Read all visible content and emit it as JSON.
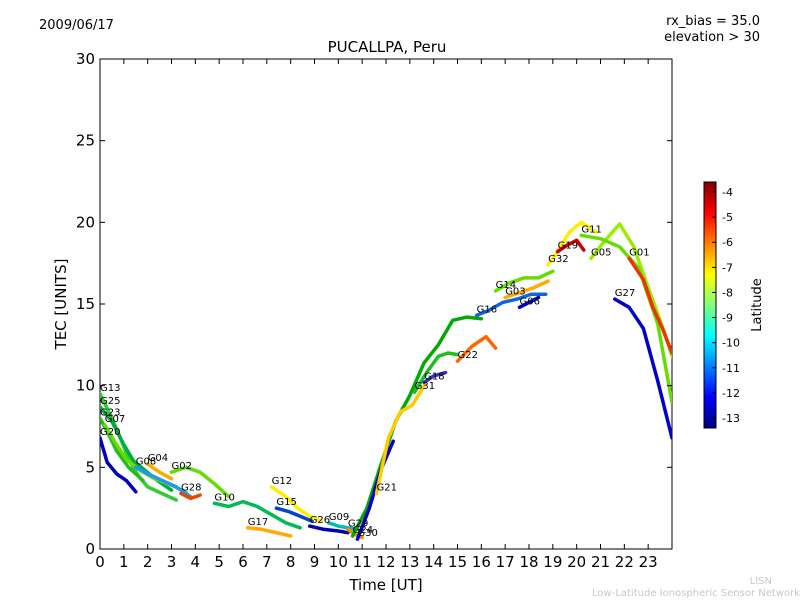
{
  "header": {
    "date": "2009/06/17",
    "station": "PUCALLPA, Peru",
    "rx_bias": "rx_bias = 35.0",
    "elevation": "elevation > 30"
  },
  "footer": {
    "line1": "LISN",
    "line2": "Low-Latitude Ionospheric Sensor Network"
  },
  "chart_data": {
    "type": "line",
    "title": "PUCALLPA, Peru",
    "xlabel": "Time [UT]",
    "ylabel": "TEC [UNITS]",
    "xlim": [
      0,
      24
    ],
    "ylim": [
      0,
      30
    ],
    "xticks": [
      "0",
      "1",
      "2",
      "3",
      "4",
      "5",
      "6",
      "7",
      "8",
      "9",
      "10",
      "11",
      "12",
      "13",
      "14",
      "15",
      "16",
      "17",
      "18",
      "19",
      "20",
      "21",
      "22",
      "23"
    ],
    "yticks": [
      "0",
      "5",
      "10",
      "15",
      "20",
      "25",
      "30"
    ],
    "colorbar": {
      "label": "Latitude",
      "range": [
        -13.4,
        -3.6
      ],
      "ticks": [
        "-4",
        "-5",
        "-6",
        "-7",
        "-8",
        "-9",
        "-10",
        "-11",
        "-12",
        "-13"
      ]
    },
    "series": [
      {
        "name": "G13",
        "color": "#33cc33",
        "x": [
          0.0,
          0.4,
          0.8,
          1.2,
          1.6,
          2.0,
          2.6,
          3.2
        ],
        "y": [
          9.5,
          8.3,
          7.0,
          5.5,
          4.5,
          3.8,
          3.4,
          3.0
        ]
      },
      {
        "name": "G25",
        "color": "#00aa44",
        "x": [
          0.0,
          0.5,
          1.0,
          1.4,
          1.9,
          2.4,
          3.0
        ],
        "y": [
          8.7,
          7.8,
          6.4,
          5.4,
          4.8,
          4.2,
          3.6
        ]
      },
      {
        "name": "G23",
        "color": "#22bb22",
        "x": [
          0.0,
          0.3,
          0.7,
          1.2,
          1.8
        ],
        "y": [
          8.0,
          7.2,
          6.0,
          5.0,
          4.2
        ]
      },
      {
        "name": "G07",
        "color": "#66dd00",
        "x": [
          0.2,
          0.6,
          1.1,
          1.7,
          2.3,
          3.0,
          3.6
        ],
        "y": [
          7.6,
          6.6,
          5.5,
          4.8,
          4.3,
          3.9,
          3.5
        ]
      },
      {
        "name": "G20",
        "color": "#0000bb",
        "x": [
          0.0,
          0.3,
          0.7,
          1.1,
          1.5
        ],
        "y": [
          6.8,
          5.3,
          4.6,
          4.2,
          3.5
        ]
      },
      {
        "name": "G08",
        "color": "#2299ee",
        "x": [
          1.5,
          2.0,
          2.6,
          3.2,
          3.8
        ],
        "y": [
          5.0,
          4.6,
          4.2,
          3.8,
          3.2
        ]
      },
      {
        "name": "G04",
        "color": "#ffaa00",
        "x": [
          2.0,
          2.5,
          3.0
        ],
        "y": [
          5.2,
          4.7,
          4.3
        ]
      },
      {
        "name": "G02",
        "color": "#66dd00",
        "x": [
          3.0,
          3.6,
          4.2,
          4.8,
          5.4
        ],
        "y": [
          4.7,
          5.0,
          4.7,
          4.0,
          3.2
        ]
      },
      {
        "name": "G28",
        "color": "#ee4400",
        "x": [
          3.4,
          3.8,
          4.2
        ],
        "y": [
          3.4,
          3.1,
          3.3
        ]
      },
      {
        "name": "G10",
        "color": "#00bb55",
        "x": [
          4.8,
          5.4,
          6.0,
          6.6,
          7.2,
          7.8,
          8.4
        ],
        "y": [
          2.8,
          2.6,
          2.9,
          2.6,
          2.1,
          1.6,
          1.3
        ]
      },
      {
        "name": "G17",
        "color": "#ffaa00",
        "x": [
          6.2,
          6.8,
          7.4,
          8.0
        ],
        "y": [
          1.3,
          1.2,
          1.0,
          0.8
        ]
      },
      {
        "name": "G15",
        "color": "#0044cc",
        "x": [
          7.4,
          7.9,
          8.4,
          8.9
        ],
        "y": [
          2.5,
          2.3,
          2.0,
          1.7
        ]
      },
      {
        "name": "G12",
        "color": "#ffee00",
        "x": [
          7.2,
          7.8,
          8.3,
          8.8,
          9.3
        ],
        "y": [
          3.8,
          3.2,
          2.5,
          2.0,
          1.7
        ]
      },
      {
        "name": "G26",
        "color": "#0000aa",
        "x": [
          8.8,
          9.4,
          10.0,
          10.4
        ],
        "y": [
          1.4,
          1.2,
          1.1,
          1.0
        ]
      },
      {
        "name": "G09",
        "color": "#00bbbb",
        "x": [
          9.6,
          10.0,
          10.4,
          10.8
        ],
        "y": [
          1.6,
          1.4,
          1.3,
          1.2
        ]
      },
      {
        "name": "G29",
        "color": "#ff8800",
        "x": [
          10.4,
          10.7,
          11.0
        ],
        "y": [
          1.2,
          0.9,
          0.7
        ]
      },
      {
        "name": "G24",
        "color": "#00aa00",
        "x": [
          10.6,
          11.2,
          11.8,
          12.4,
          13.0,
          13.6,
          14.2,
          14.8,
          15.4,
          16.0
        ],
        "y": [
          0.8,
          2.5,
          5.2,
          7.8,
          9.4,
          11.4,
          12.5,
          14.0,
          14.2,
          14.1
        ]
      },
      {
        "name": "G30",
        "color": "#0000cc",
        "x": [
          10.8,
          11.3,
          11.8,
          12.3
        ],
        "y": [
          0.6,
          2.5,
          4.9,
          6.6
        ]
      },
      {
        "name": "G21",
        "color": "#ffcc00",
        "x": [
          11.6,
          12.1,
          12.6,
          13.1,
          13.6
        ],
        "y": [
          3.4,
          6.8,
          8.4,
          8.8,
          10.0
        ]
      },
      {
        "name": "G31",
        "color": "#22bb22",
        "x": [
          13.2,
          13.7,
          14.2,
          14.6,
          15.0
        ],
        "y": [
          9.6,
          10.8,
          11.8,
          12.0,
          11.9
        ]
      },
      {
        "name": "G18",
        "color": "#3333cc",
        "x": [
          13.6,
          14.0,
          14.5
        ],
        "y": [
          10.2,
          10.6,
          10.8
        ]
      },
      {
        "name": "G22",
        "color": "#ff6600",
        "x": [
          15.0,
          15.6,
          16.2,
          16.6
        ],
        "y": [
          11.5,
          12.4,
          13.0,
          12.3
        ]
      },
      {
        "name": "G16",
        "color": "#1166dd",
        "x": [
          15.8,
          16.3,
          16.9,
          17.5,
          18.1,
          18.7
        ],
        "y": [
          14.3,
          14.6,
          15.1,
          15.3,
          15.6,
          15.6
        ]
      },
      {
        "name": "G06",
        "color": "#0000cc",
        "x": [
          17.6,
          18.0,
          18.4
        ],
        "y": [
          14.8,
          15.1,
          15.4
        ]
      },
      {
        "name": "G03",
        "color": "#ffaa00",
        "x": [
          17.0,
          17.6,
          18.2,
          18.8
        ],
        "y": [
          15.4,
          15.7,
          16.0,
          16.4
        ]
      },
      {
        "name": "G14",
        "color": "#66dd00",
        "x": [
          16.6,
          17.2,
          17.8,
          18.4,
          19.0
        ],
        "y": [
          15.8,
          16.3,
          16.6,
          16.6,
          17.0
        ]
      },
      {
        "name": "G32",
        "color": "#ffee00",
        "x": [
          18.8,
          19.2,
          19.7,
          20.2,
          20.8
        ],
        "y": [
          17.4,
          18.2,
          19.4,
          20.0,
          19.4
        ]
      },
      {
        "name": "G19",
        "color": "#cc0000",
        "x": [
          19.2,
          19.6,
          20.0,
          20.3
        ],
        "y": [
          18.2,
          18.6,
          18.9,
          18.3
        ]
      },
      {
        "name": "G05",
        "color": "#99ee00",
        "x": [
          20.6,
          21.2,
          21.8,
          22.4,
          23.0,
          23.6,
          24.0
        ],
        "y": [
          17.8,
          18.9,
          19.9,
          18.5,
          16.0,
          13.6,
          11.8
        ]
      },
      {
        "name": "G11",
        "color": "#66dd00",
        "x": [
          20.2,
          21.0,
          21.8,
          22.6,
          23.4,
          24.0
        ],
        "y": [
          19.2,
          19.0,
          18.5,
          17.2,
          13.8,
          9.0
        ]
      },
      {
        "name": "G27",
        "color": "#0000cc",
        "x": [
          21.6,
          22.2,
          22.8,
          23.4,
          24.0
        ],
        "y": [
          15.3,
          14.8,
          13.5,
          10.3,
          6.8
        ]
      },
      {
        "name": "G01",
        "color": "#ee3300",
        "x": [
          22.2,
          22.8,
          23.2,
          23.6,
          24.0
        ],
        "y": [
          17.8,
          16.5,
          14.8,
          13.5,
          12.0
        ]
      }
    ]
  }
}
